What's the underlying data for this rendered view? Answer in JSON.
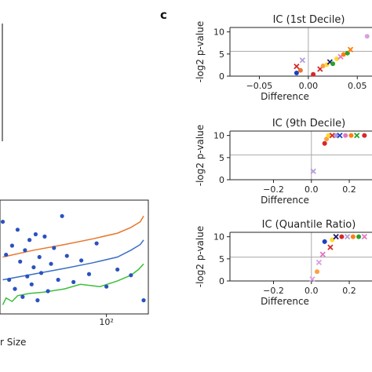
{
  "panel_letter": "c",
  "left_panel": {
    "x_tick_label": "10²",
    "x_axis_fragment": "r Size"
  },
  "chart_data": [
    {
      "type": "scatter",
      "title": "IC (1st Decile)",
      "xlabel": "Difference",
      "ylabel": "-log2 p-value",
      "xlim": [
        -0.08,
        0.065
      ],
      "ylim": [
        0,
        11
      ],
      "xticks": [
        -0.05,
        0.0,
        0.05
      ],
      "xtick_labels": [
        "−0.05",
        "0.00",
        "0.05"
      ],
      "yticks": [
        0,
        5,
        10
      ],
      "ytick_labels": [
        "0",
        "5",
        "10"
      ],
      "threshold": 5.6,
      "points": [
        {
          "x": -0.012,
          "y": 0.7,
          "marker": "dot",
          "color": "#1f3fbf"
        },
        {
          "x": -0.008,
          "y": 1.3,
          "marker": "dot",
          "color": "#e8762c"
        },
        {
          "x": -0.012,
          "y": 2.2,
          "marker": "x",
          "color": "#d62728"
        },
        {
          "x": -0.006,
          "y": 3.6,
          "marker": "x",
          "color": "#b39ddb"
        },
        {
          "x": 0.005,
          "y": 0.4,
          "marker": "dot",
          "color": "#d62728"
        },
        {
          "x": 0.012,
          "y": 1.6,
          "marker": "x",
          "color": "#d62728"
        },
        {
          "x": 0.015,
          "y": 2.3,
          "marker": "dot",
          "color": "#ff9f40"
        },
        {
          "x": 0.019,
          "y": 2.6,
          "marker": "dot",
          "color": "#ffd92f"
        },
        {
          "x": 0.022,
          "y": 3.2,
          "marker": "x",
          "color": "#1a1a6e"
        },
        {
          "x": 0.025,
          "y": 2.8,
          "marker": "dot",
          "color": "#2ca02c"
        },
        {
          "x": 0.029,
          "y": 3.9,
          "marker": "dot",
          "color": "#ffd92f"
        },
        {
          "x": 0.033,
          "y": 4.4,
          "marker": "x",
          "color": "#e377c2"
        },
        {
          "x": 0.036,
          "y": 4.9,
          "marker": "dot",
          "color": "#ff7f0e"
        },
        {
          "x": 0.04,
          "y": 5.2,
          "marker": "dot",
          "color": "#2ca02c"
        },
        {
          "x": 0.043,
          "y": 6.0,
          "marker": "x",
          "color": "#ff7f0e"
        },
        {
          "x": 0.06,
          "y": 9.0,
          "marker": "dot",
          "color": "#d9a0e0"
        }
      ]
    },
    {
      "type": "scatter",
      "title": "IC (9th Decile)",
      "xlabel": "Difference",
      "ylabel": "-log2 p-value",
      "xlim": [
        -0.43,
        0.32
      ],
      "ylim": [
        0,
        11
      ],
      "xticks": [
        -0.2,
        0.0,
        0.2
      ],
      "xtick_labels": [
        "−0.2",
        "0.0",
        "0.2"
      ],
      "yticks": [
        0,
        5,
        10
      ],
      "ytick_labels": [
        "0",
        "5",
        "10"
      ],
      "threshold": 5.6,
      "points": [
        {
          "x": 0.01,
          "y": 1.9,
          "marker": "x",
          "color": "#b39ddb"
        },
        {
          "x": 0.07,
          "y": 8.2,
          "marker": "dot",
          "color": "#d62728"
        },
        {
          "x": 0.08,
          "y": 9.2,
          "marker": "dot",
          "color": "#ff9f40"
        },
        {
          "x": 0.09,
          "y": 10.0,
          "marker": "dot",
          "color": "#ffd92f"
        },
        {
          "x": 0.11,
          "y": 10.0,
          "marker": "x",
          "color": "#d62728"
        },
        {
          "x": 0.13,
          "y": 10.0,
          "marker": "dot",
          "color": "#b39ddb"
        },
        {
          "x": 0.15,
          "y": 10.0,
          "marker": "x",
          "color": "#1f3fbf"
        },
        {
          "x": 0.18,
          "y": 10.0,
          "marker": "dot",
          "color": "#e377c2"
        },
        {
          "x": 0.21,
          "y": 10.0,
          "marker": "dot",
          "color": "#ff7f0e"
        },
        {
          "x": 0.24,
          "y": 10.0,
          "marker": "x",
          "color": "#2ca02c"
        },
        {
          "x": 0.28,
          "y": 10.0,
          "marker": "dot",
          "color": "#d62728"
        }
      ]
    },
    {
      "type": "scatter",
      "title": "IC (Quantile Ratio)",
      "xlabel": "Difference",
      "ylabel": "-log2 p-value",
      "xlim": [
        -0.43,
        0.32
      ],
      "ylim": [
        0,
        11
      ],
      "xticks": [
        -0.2,
        0.0,
        0.2
      ],
      "xtick_labels": [
        "−0.2",
        "0.0",
        "0.2"
      ],
      "yticks": [
        0,
        5,
        10
      ],
      "ytick_labels": [
        "0",
        "5",
        "10"
      ],
      "threshold": 5.4,
      "points": [
        {
          "x": 0.005,
          "y": 0.4,
          "marker": "x",
          "color": "#d9a0e0"
        },
        {
          "x": 0.03,
          "y": 2.1,
          "marker": "dot",
          "color": "#ff9f40"
        },
        {
          "x": 0.04,
          "y": 4.2,
          "marker": "x",
          "color": "#d9a0e0"
        },
        {
          "x": 0.06,
          "y": 6.0,
          "marker": "x",
          "color": "#e377c2"
        },
        {
          "x": 0.07,
          "y": 8.9,
          "marker": "dot",
          "color": "#1f3fbf"
        },
        {
          "x": 0.1,
          "y": 7.6,
          "marker": "x",
          "color": "#d62728"
        },
        {
          "x": 0.11,
          "y": 9.3,
          "marker": "dot",
          "color": "#ffd92f"
        },
        {
          "x": 0.13,
          "y": 10.0,
          "marker": "x",
          "color": "#1a1a6e"
        },
        {
          "x": 0.16,
          "y": 10.0,
          "marker": "dot",
          "color": "#d62728"
        },
        {
          "x": 0.19,
          "y": 10.0,
          "marker": "x",
          "color": "#b39ddb"
        },
        {
          "x": 0.22,
          "y": 10.0,
          "marker": "dot",
          "color": "#ff7f0e"
        },
        {
          "x": 0.25,
          "y": 10.0,
          "marker": "dot",
          "color": "#2ca02c"
        },
        {
          "x": 0.28,
          "y": 10.0,
          "marker": "x",
          "color": "#e377c2"
        }
      ]
    },
    {
      "type": "scatter",
      "title": "",
      "xlabel": "",
      "ylabel": "",
      "x_scale": "log",
      "xlim": [
        18,
        200
      ],
      "ylim": [
        0,
        10
      ],
      "xticks": [
        100
      ],
      "xtick_labels": [
        "10²"
      ],
      "points": [
        {
          "x": 18,
          "y": 8.1
        },
        {
          "x": 19,
          "y": 5.2
        },
        {
          "x": 20,
          "y": 3.0
        },
        {
          "x": 21,
          "y": 6.0
        },
        {
          "x": 22,
          "y": 2.2
        },
        {
          "x": 23,
          "y": 7.4
        },
        {
          "x": 24,
          "y": 4.6
        },
        {
          "x": 25,
          "y": 1.5
        },
        {
          "x": 26,
          "y": 5.6
        },
        {
          "x": 27,
          "y": 3.3
        },
        {
          "x": 28,
          "y": 6.5
        },
        {
          "x": 29,
          "y": 2.6
        },
        {
          "x": 30,
          "y": 4.1
        },
        {
          "x": 31,
          "y": 7.0
        },
        {
          "x": 32,
          "y": 1.2
        },
        {
          "x": 33,
          "y": 5.0
        },
        {
          "x": 34,
          "y": 3.6
        },
        {
          "x": 36,
          "y": 6.8
        },
        {
          "x": 38,
          "y": 2.0
        },
        {
          "x": 40,
          "y": 4.4
        },
        {
          "x": 42,
          "y": 5.8
        },
        {
          "x": 45,
          "y": 3.0
        },
        {
          "x": 48,
          "y": 8.6
        },
        {
          "x": 52,
          "y": 5.1
        },
        {
          "x": 58,
          "y": 2.8
        },
        {
          "x": 66,
          "y": 4.7
        },
        {
          "x": 75,
          "y": 3.5
        },
        {
          "x": 85,
          "y": 6.2
        },
        {
          "x": 100,
          "y": 2.4
        },
        {
          "x": 120,
          "y": 3.9
        },
        {
          "x": 150,
          "y": 3.4
        },
        {
          "x": 185,
          "y": 1.2
        }
      ],
      "series": [
        {
          "color": "#e8762c",
          "x": [
            18,
            30,
            50,
            80,
            120,
            150,
            175,
            185
          ],
          "y": [
            5.0,
            5.6,
            6.1,
            6.6,
            7.1,
            7.6,
            8.1,
            8.6
          ]
        },
        {
          "color": "#3a6fc4",
          "x": [
            18,
            30,
            50,
            80,
            120,
            150,
            175,
            185
          ],
          "y": [
            3.0,
            3.5,
            4.0,
            4.5,
            5.0,
            5.6,
            6.1,
            6.5
          ]
        },
        {
          "color": "#3cbf3c",
          "x": [
            18,
            19,
            21,
            23,
            28,
            35,
            50,
            65,
            90,
            120,
            150,
            170,
            185
          ],
          "y": [
            0.8,
            1.4,
            1.1,
            1.6,
            1.8,
            1.9,
            2.2,
            2.6,
            2.4,
            2.9,
            3.4,
            3.9,
            4.4
          ]
        }
      ]
    }
  ]
}
